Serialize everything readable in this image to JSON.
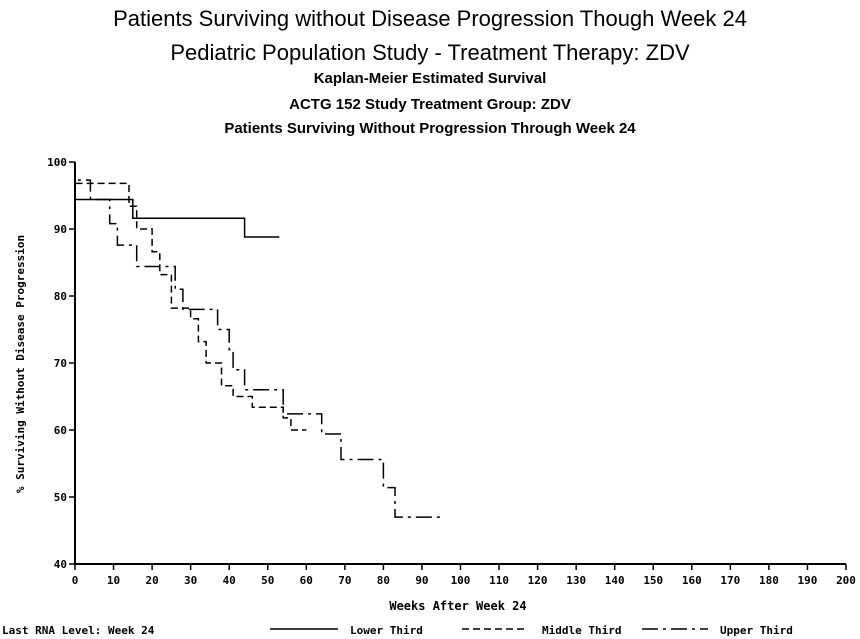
{
  "header": {
    "title": "Patients Surviving without Disease Progression Though Week 24",
    "subtitle": "Pediatric Population Study - Treatment Therapy: ZDV"
  },
  "chart_data": {
    "type": "line",
    "titles": [
      "Kaplan-Meier Estimated Survival",
      "ACTG 152 Study Treatment Group: ZDV",
      "Patients Surviving Without Progression Through Week 24"
    ],
    "xlabel": "Weeks After Week 24",
    "ylabel": "% Surviving Without Disease Progression",
    "xlim": [
      0,
      200
    ],
    "ylim": [
      40,
      100
    ],
    "xticks": [
      0,
      10,
      20,
      30,
      40,
      50,
      60,
      70,
      80,
      90,
      100,
      110,
      120,
      130,
      140,
      150,
      160,
      170,
      180,
      190,
      200
    ],
    "yticks": [
      40,
      50,
      60,
      70,
      80,
      90,
      100
    ],
    "legend_title": "Last RNA Level: Week 24",
    "legend_position": "bottom",
    "series": [
      {
        "name": "Lower Third",
        "style": "solid",
        "points": [
          [
            0,
            100
          ],
          [
            0,
            94.4
          ],
          [
            15,
            94.4
          ],
          [
            15,
            91.6
          ],
          [
            44,
            91.6
          ],
          [
            44,
            88.8
          ],
          [
            53,
            88.8
          ]
        ]
      },
      {
        "name": "Middle Third",
        "style": "dashed",
        "points": [
          [
            0,
            100
          ],
          [
            0,
            96.8
          ],
          [
            14,
            96.8
          ],
          [
            14,
            93.4
          ],
          [
            16,
            93.4
          ],
          [
            16,
            90.0
          ],
          [
            20,
            90.0
          ],
          [
            20,
            86.6
          ],
          [
            22,
            86.6
          ],
          [
            22,
            83.2
          ],
          [
            25,
            83.2
          ],
          [
            25,
            78.2
          ],
          [
            30,
            78.2
          ],
          [
            30,
            76.6
          ],
          [
            32,
            76.6
          ],
          [
            32,
            73.2
          ],
          [
            34,
            73.2
          ],
          [
            34,
            70.0
          ],
          [
            38,
            70.0
          ],
          [
            38,
            66.6
          ],
          [
            41,
            66.6
          ],
          [
            41,
            65.0
          ],
          [
            46,
            65.0
          ],
          [
            46,
            63.4
          ],
          [
            54,
            63.4
          ],
          [
            54,
            61.8
          ],
          [
            56,
            61.8
          ],
          [
            56,
            60.0
          ],
          [
            60,
            60.0
          ]
        ]
      },
      {
        "name": "Upper Third",
        "style": "longdash",
        "points": [
          [
            0,
            100
          ],
          [
            0,
            97.3
          ],
          [
            4,
            97.3
          ],
          [
            4,
            94.4
          ],
          [
            9,
            94.4
          ],
          [
            9,
            90.8
          ],
          [
            11,
            90.8
          ],
          [
            11,
            87.6
          ],
          [
            16,
            87.6
          ],
          [
            16,
            84.4
          ],
          [
            26,
            84.4
          ],
          [
            26,
            81.0
          ],
          [
            28,
            81.0
          ],
          [
            28,
            78.0
          ],
          [
            37,
            78.0
          ],
          [
            37,
            75.0
          ],
          [
            40,
            75.0
          ],
          [
            40,
            72.0
          ],
          [
            41,
            72.0
          ],
          [
            41,
            69.0
          ],
          [
            44,
            69.0
          ],
          [
            44,
            66.0
          ],
          [
            54,
            66.0
          ],
          [
            54,
            62.4
          ],
          [
            64,
            62.4
          ],
          [
            64,
            59.4
          ],
          [
            69,
            59.4
          ],
          [
            69,
            55.6
          ],
          [
            80,
            55.6
          ],
          [
            80,
            51.4
          ],
          [
            83,
            51.4
          ],
          [
            83,
            47.0
          ],
          [
            85,
            47.0
          ],
          [
            87,
            47.0
          ],
          [
            95,
            47.0
          ]
        ]
      }
    ]
  }
}
